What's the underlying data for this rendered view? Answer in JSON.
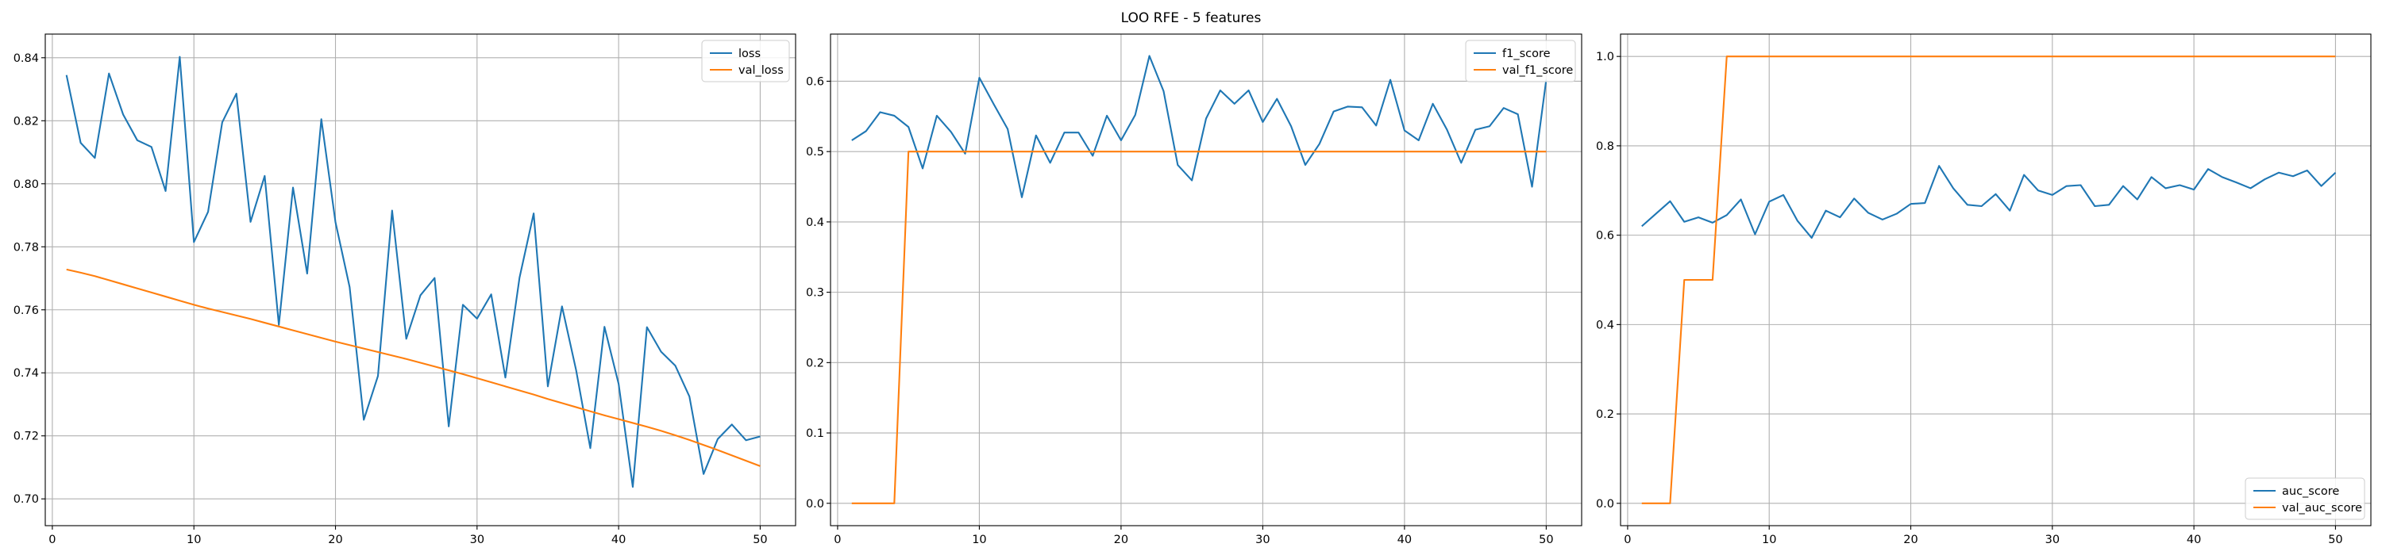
{
  "chart_data": {
    "title": "LOO RFE - 5 features",
    "colors": {
      "blue": "#1f77b4",
      "orange": "#ff7f0e"
    },
    "panels": [
      {
        "type": "line",
        "xlim": [
          -0.5,
          52.5
        ],
        "ylim": [
          0.6915,
          0.8475
        ],
        "xticks": [
          0,
          10,
          20,
          30,
          40,
          50
        ],
        "xtick_labels": [
          "0",
          "10",
          "20",
          "30",
          "40",
          "50"
        ],
        "yticks": [
          0.7,
          0.72,
          0.74,
          0.76,
          0.78,
          0.8,
          0.82,
          0.84
        ],
        "ytick_labels": [
          "0.70",
          "0.72",
          "0.74",
          "0.76",
          "0.78",
          "0.80",
          "0.82",
          "0.84"
        ],
        "grid": true,
        "legend_loc": "upper right",
        "series": [
          {
            "name": "loss",
            "color": "#1f77b4",
            "x": [
              1,
              2,
              3,
              4,
              5,
              6,
              7,
              8,
              9,
              10,
              11,
              12,
              13,
              14,
              15,
              16,
              17,
              18,
              19,
              20,
              21,
              22,
              23,
              24,
              25,
              26,
              27,
              28,
              29,
              30,
              31,
              32,
              33,
              34,
              35,
              36,
              37,
              38,
              39,
              40,
              41,
              42,
              43,
              44,
              45,
              46,
              47,
              48,
              49,
              50
            ],
            "y": [
              0.8345,
              0.813,
              0.8082,
              0.835,
              0.822,
              0.8138,
              0.8117,
              0.7977,
              0.8403,
              0.7815,
              0.7911,
              0.8195,
              0.8286,
              0.7879,
              0.8025,
              0.7552,
              0.7988,
              0.7715,
              0.8205,
              0.7878,
              0.7672,
              0.7251,
              0.739,
              0.7915,
              0.7508,
              0.7646,
              0.7701,
              0.723,
              0.7616,
              0.7572,
              0.7649,
              0.7385,
              0.7702,
              0.7906,
              0.7357,
              0.7611,
              0.7408,
              0.7161,
              0.7546,
              0.7365,
              0.7038,
              0.7545,
              0.7467,
              0.7423,
              0.7325,
              0.7079,
              0.719,
              0.7236,
              0.7186,
              0.7198
            ]
          },
          {
            "name": "val_loss",
            "color": "#ff7f0e",
            "x": [
              1,
              2,
              3,
              4,
              5,
              6,
              7,
              8,
              9,
              10,
              11,
              12,
              13,
              14,
              15,
              16,
              17,
              18,
              19,
              20,
              21,
              22,
              23,
              24,
              25,
              26,
              27,
              28,
              29,
              30,
              31,
              32,
              33,
              34,
              35,
              36,
              37,
              38,
              39,
              40,
              41,
              42,
              43,
              44,
              45,
              46,
              47,
              48,
              49,
              50
            ],
            "y": [
              0.7728,
              0.7718,
              0.7707,
              0.7694,
              0.7681,
              0.7668,
              0.7655,
              0.7642,
              0.7629,
              0.7616,
              0.7604,
              0.7593,
              0.7582,
              0.7571,
              0.7559,
              0.7547,
              0.7535,
              0.7523,
              0.7511,
              0.7499,
              0.7488,
              0.7477,
              0.7466,
              0.7455,
              0.7444,
              0.7432,
              0.742,
              0.7408,
              0.7396,
              0.7383,
              0.737,
              0.7357,
              0.7344,
              0.7331,
              0.7317,
              0.7304,
              0.7291,
              0.7278,
              0.7265,
              0.7253,
              0.7241,
              0.7229,
              0.7216,
              0.7202,
              0.7187,
              0.7171,
              0.7155,
              0.7138,
              0.7121,
              0.7104
            ]
          }
        ]
      },
      {
        "type": "line",
        "xlim": [
          -0.5,
          52.5
        ],
        "ylim": [
          -0.0318,
          0.667
        ],
        "xticks": [
          0,
          10,
          20,
          30,
          40,
          50
        ],
        "xtick_labels": [
          "0",
          "10",
          "20",
          "30",
          "40",
          "50"
        ],
        "yticks": [
          0.0,
          0.1,
          0.2,
          0.3,
          0.4,
          0.5,
          0.6
        ],
        "ytick_labels": [
          "0.0",
          "0.1",
          "0.2",
          "0.3",
          "0.4",
          "0.5",
          "0.6"
        ],
        "grid": true,
        "legend_loc": "upper right",
        "series": [
          {
            "name": "f1_score",
            "color": "#1f77b4",
            "x": [
              1,
              2,
              3,
              4,
              5,
              6,
              7,
              8,
              9,
              10,
              11,
              12,
              13,
              14,
              15,
              16,
              17,
              18,
              19,
              20,
              21,
              22,
              23,
              24,
              25,
              26,
              27,
              28,
              29,
              30,
              31,
              32,
              33,
              34,
              35,
              36,
              37,
              38,
              39,
              40,
              41,
              42,
              43,
              44,
              45,
              46,
              47,
              48,
              49,
              50
            ],
            "y": [
              0.516,
              0.529,
              0.556,
              0.551,
              0.535,
              0.476,
              0.551,
              0.528,
              0.497,
              0.605,
              0.568,
              0.532,
              0.435,
              0.523,
              0.484,
              0.527,
              0.527,
              0.494,
              0.551,
              0.516,
              0.552,
              0.636,
              0.586,
              0.481,
              0.459,
              0.547,
              0.587,
              0.568,
              0.587,
              0.542,
              0.575,
              0.536,
              0.481,
              0.511,
              0.557,
              0.564,
              0.563,
              0.537,
              0.602,
              0.53,
              0.516,
              0.568,
              0.531,
              0.484,
              0.531,
              0.536,
              0.562,
              0.553,
              0.45,
              0.602
            ]
          },
          {
            "name": "val_f1_score",
            "color": "#ff7f0e",
            "x": [
              1,
              2,
              3,
              4,
              5,
              6,
              7,
              8,
              9,
              10,
              11,
              12,
              13,
              14,
              15,
              16,
              17,
              18,
              19,
              20,
              21,
              22,
              23,
              24,
              25,
              26,
              27,
              28,
              29,
              30,
              31,
              32,
              33,
              34,
              35,
              36,
              37,
              38,
              39,
              40,
              41,
              42,
              43,
              44,
              45,
              46,
              47,
              48,
              49,
              50
            ],
            "y": [
              0,
              0,
              0,
              0,
              0.5,
              0.5,
              0.5,
              0.5,
              0.5,
              0.5,
              0.5,
              0.5,
              0.5,
              0.5,
              0.5,
              0.5,
              0.5,
              0.5,
              0.5,
              0.5,
              0.5,
              0.5,
              0.5,
              0.5,
              0.5,
              0.5,
              0.5,
              0.5,
              0.5,
              0.5,
              0.5,
              0.5,
              0.5,
              0.5,
              0.5,
              0.5,
              0.5,
              0.5,
              0.5,
              0.5,
              0.5,
              0.5,
              0.5,
              0.5,
              0.5,
              0.5,
              0.5,
              0.5,
              0.5,
              0.5
            ]
          }
        ]
      },
      {
        "type": "line",
        "xlim": [
          -0.5,
          52.5
        ],
        "ylim": [
          -0.05,
          1.05
        ],
        "xticks": [
          0,
          10,
          20,
          30,
          40,
          50
        ],
        "xtick_labels": [
          "0",
          "10",
          "20",
          "30",
          "40",
          "50"
        ],
        "yticks": [
          0.0,
          0.2,
          0.4,
          0.6,
          0.8,
          1.0
        ],
        "ytick_labels": [
          "0.0",
          "0.2",
          "0.4",
          "0.6",
          "0.8",
          "1.0"
        ],
        "grid": true,
        "legend_loc": "lower right",
        "series": [
          {
            "name": "auc_score",
            "color": "#1f77b4",
            "x": [
              1,
              2,
              3,
              4,
              5,
              6,
              7,
              8,
              9,
              10,
              11,
              12,
              13,
              14,
              15,
              16,
              17,
              18,
              19,
              20,
              21,
              22,
              23,
              24,
              25,
              26,
              27,
              28,
              29,
              30,
              31,
              32,
              33,
              34,
              35,
              36,
              37,
              38,
              39,
              40,
              41,
              42,
              43,
              44,
              45,
              46,
              47,
              48,
              49,
              50
            ],
            "y": [
              0.62,
              0.648,
              0.676,
              0.63,
              0.64,
              0.628,
              0.645,
              0.68,
              0.602,
              0.675,
              0.69,
              0.632,
              0.594,
              0.655,
              0.64,
              0.682,
              0.65,
              0.635,
              0.648,
              0.67,
              0.672,
              0.755,
              0.705,
              0.668,
              0.665,
              0.692,
              0.655,
              0.735,
              0.7,
              0.69,
              0.71,
              0.712,
              0.665,
              0.668,
              0.71,
              0.68,
              0.73,
              0.705,
              0.712,
              0.702,
              0.748,
              0.73,
              0.718,
              0.705,
              0.725,
              0.74,
              0.732,
              0.745,
              0.71,
              0.74
            ]
          },
          {
            "name": "val_auc_score",
            "color": "#ff7f0e",
            "x": [
              1,
              2,
              3,
              4,
              5,
              6,
              7,
              8,
              9,
              10,
              11,
              12,
              13,
              14,
              15,
              16,
              17,
              18,
              19,
              20,
              21,
              22,
              23,
              24,
              25,
              26,
              27,
              28,
              29,
              30,
              31,
              32,
              33,
              34,
              35,
              36,
              37,
              38,
              39,
              40,
              41,
              42,
              43,
              44,
              45,
              46,
              47,
              48,
              49,
              50
            ],
            "y": [
              0,
              0,
              0,
              0.5,
              0.5,
              0.5,
              1,
              1,
              1,
              1,
              1,
              1,
              1,
              1,
              1,
              1,
              1,
              1,
              1,
              1,
              1,
              1,
              1,
              1,
              1,
              1,
              1,
              1,
              1,
              1,
              1,
              1,
              1,
              1,
              1,
              1,
              1,
              1,
              1,
              1,
              1,
              1,
              1,
              1,
              1,
              1,
              1,
              1,
              1,
              1
            ]
          }
        ]
      }
    ]
  }
}
